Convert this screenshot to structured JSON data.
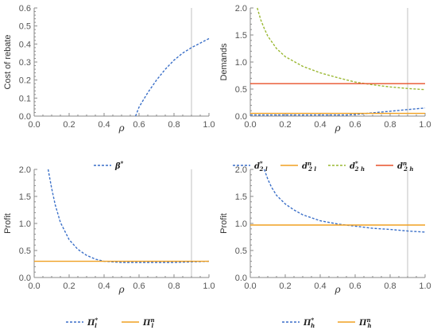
{
  "colors": {
    "blue": "#3a6fc8",
    "orange": "#f0a020",
    "green": "#9ab832",
    "red": "#e8502a",
    "axis": "#8a8a8a",
    "vline": "#c0c0c0"
  },
  "chart_data": [
    {
      "type": "line",
      "title": "",
      "xlabel": "ρ",
      "ylabel": "Cost of rebate",
      "xlim": [
        0,
        1
      ],
      "ylim": [
        0,
        0.6
      ],
      "xticks": [
        "0.0",
        "0.2",
        "0.4",
        "0.6",
        "0.8",
        "1.0"
      ],
      "yticks": [
        "0.0",
        "0.1",
        "0.2",
        "0.3",
        "0.4",
        "0.5",
        "0.6"
      ],
      "vline": 0.9,
      "legend": "bottom",
      "series": [
        {
          "name": "β*",
          "sym": "β",
          "sup": "*",
          "sub": "",
          "color": "blue",
          "dash": true,
          "x": [
            0.58,
            0.6,
            0.65,
            0.7,
            0.75,
            0.8,
            0.85,
            0.9,
            0.95,
            1.0
          ],
          "y": [
            0.0,
            0.05,
            0.13,
            0.2,
            0.26,
            0.31,
            0.35,
            0.38,
            0.405,
            0.43
          ]
        }
      ]
    },
    {
      "type": "line",
      "title": "",
      "xlabel": "ρ",
      "ylabel": "Demands",
      "xlim": [
        0,
        1
      ],
      "ylim": [
        0,
        2
      ],
      "xticks": [
        "0.0",
        "0.2",
        "0.4",
        "0.6",
        "0.8",
        "1.0"
      ],
      "yticks": [
        "0.0",
        "0.5",
        "1.0",
        "1.5",
        "2.0"
      ],
      "vline": 0.9,
      "legend": "bottom",
      "series": [
        {
          "name": "d*2 l",
          "sym": "d",
          "sup": "*",
          "sub": "2 l",
          "color": "blue",
          "dash": true,
          "x": [
            0.0,
            0.2,
            0.4,
            0.55,
            0.6,
            0.7,
            0.8,
            0.9,
            1.0
          ],
          "y": [
            0.02,
            0.02,
            0.02,
            0.02,
            0.03,
            0.06,
            0.09,
            0.12,
            0.15
          ]
        },
        {
          "name": "dn2 l",
          "sym": "d",
          "sup": "n",
          "sub": "2 l",
          "color": "orange",
          "dash": false,
          "x": [
            0.0,
            1.0
          ],
          "y": [
            0.05,
            0.05
          ]
        },
        {
          "name": "d*2 h",
          "sym": "d",
          "sup": "*",
          "sub": "2 h",
          "color": "green",
          "dash": true,
          "x": [
            0.04,
            0.06,
            0.08,
            0.1,
            0.15,
            0.2,
            0.3,
            0.4,
            0.5,
            0.6,
            0.7,
            0.8,
            0.9,
            1.0
          ],
          "y": [
            2.0,
            1.78,
            1.62,
            1.48,
            1.25,
            1.1,
            0.92,
            0.8,
            0.71,
            0.63,
            0.58,
            0.54,
            0.51,
            0.49
          ]
        },
        {
          "name": "dn2 h",
          "sym": "d",
          "sup": "n",
          "sub": "2 h",
          "color": "red",
          "dash": false,
          "x": [
            0.0,
            1.0
          ],
          "y": [
            0.6,
            0.6
          ]
        }
      ]
    },
    {
      "type": "line",
      "title": "",
      "xlabel": "ρ",
      "ylabel": "Profit",
      "xlim": [
        0,
        1
      ],
      "ylim": [
        0,
        2
      ],
      "xticks": [
        "0.0",
        "0.2",
        "0.4",
        "0.6",
        "0.8",
        "1.0"
      ],
      "yticks": [
        "0.0",
        "0.5",
        "1.0",
        "1.5",
        "2.0"
      ],
      "vline": 0.9,
      "legend": "bottom",
      "series": [
        {
          "name": "Π*l",
          "sym": "Π",
          "sup": "*",
          "sub": "l",
          "color": "blue",
          "dash": true,
          "x": [
            0.08,
            0.1,
            0.12,
            0.15,
            0.2,
            0.25,
            0.3,
            0.35,
            0.4,
            0.5,
            0.6,
            0.7,
            0.8,
            0.9,
            1.0
          ],
          "y": [
            2.0,
            1.65,
            1.35,
            1.02,
            0.7,
            0.52,
            0.41,
            0.34,
            0.3,
            0.28,
            0.28,
            0.28,
            0.28,
            0.29,
            0.3
          ]
        },
        {
          "name": "Πnl",
          "sym": "Π",
          "sup": "n",
          "sub": "l",
          "color": "orange",
          "dash": false,
          "x": [
            0.0,
            1.0
          ],
          "y": [
            0.3,
            0.3
          ]
        }
      ]
    },
    {
      "type": "line",
      "title": "",
      "xlabel": "ρ",
      "ylabel": "Profit",
      "xlim": [
        0,
        1
      ],
      "ylim": [
        0,
        2
      ],
      "xticks": [
        "0.0",
        "0.2",
        "0.4",
        "0.6",
        "0.8",
        "1.0"
      ],
      "yticks": [
        "0.0",
        "0.5",
        "1.0",
        "1.5",
        "2.0"
      ],
      "vline": 0.9,
      "legend": "bottom",
      "series": [
        {
          "name": "Π*h",
          "sym": "Π",
          "sup": "*",
          "sub": "h",
          "color": "blue",
          "dash": true,
          "x": [
            0.08,
            0.1,
            0.12,
            0.15,
            0.2,
            0.25,
            0.3,
            0.4,
            0.5,
            0.6,
            0.7,
            0.8,
            0.9,
            1.0
          ],
          "y": [
            2.0,
            1.82,
            1.68,
            1.52,
            1.36,
            1.25,
            1.16,
            1.05,
            0.99,
            0.95,
            0.91,
            0.89,
            0.86,
            0.84
          ]
        },
        {
          "name": "Πnh",
          "sym": "Π",
          "sup": "n",
          "sub": "h",
          "color": "orange",
          "dash": false,
          "x": [
            0.0,
            1.0
          ],
          "y": [
            0.97,
            0.97
          ]
        }
      ]
    }
  ]
}
